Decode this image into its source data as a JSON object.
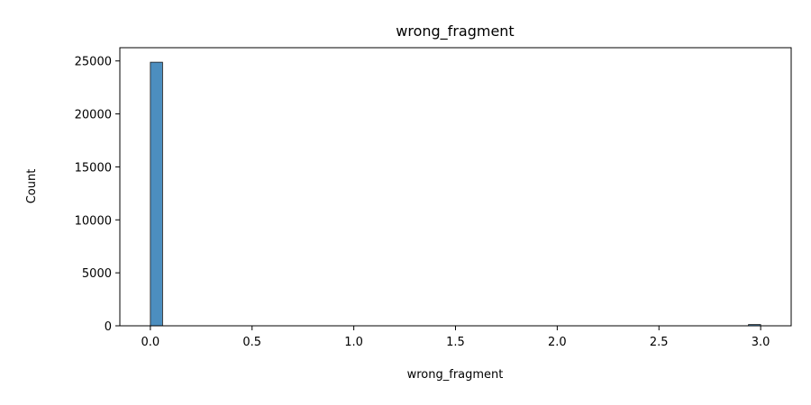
{
  "chart_data": {
    "type": "bar",
    "title": "wrong_fragment",
    "xlabel": "wrong_fragment",
    "ylabel": "Count",
    "xlim": [
      -0.15,
      3.15
    ],
    "ylim": [
      0,
      26250
    ],
    "x_ticks": [
      {
        "value": 0.0,
        "label": "0.0"
      },
      {
        "value": 0.5,
        "label": "0.5"
      },
      {
        "value": 1.0,
        "label": "1.0"
      },
      {
        "value": 1.5,
        "label": "1.5"
      },
      {
        "value": 2.0,
        "label": "2.0"
      },
      {
        "value": 2.5,
        "label": "2.5"
      },
      {
        "value": 3.0,
        "label": "3.0"
      }
    ],
    "y_ticks": [
      {
        "value": 0,
        "label": "0"
      },
      {
        "value": 5000,
        "label": "5000"
      },
      {
        "value": 10000,
        "label": "10000"
      },
      {
        "value": 15000,
        "label": "15000"
      },
      {
        "value": 20000,
        "label": "20000"
      },
      {
        "value": 25000,
        "label": "25000"
      }
    ],
    "bins": [
      {
        "x0": 0.0,
        "x1": 0.06,
        "count": 24880
      },
      {
        "x0": 2.94,
        "x1": 3.0,
        "count": 120
      }
    ],
    "bar_color": "#4c8ebf",
    "bar_edge_color": "#1a1a1a",
    "grid": false,
    "legend": "none"
  }
}
